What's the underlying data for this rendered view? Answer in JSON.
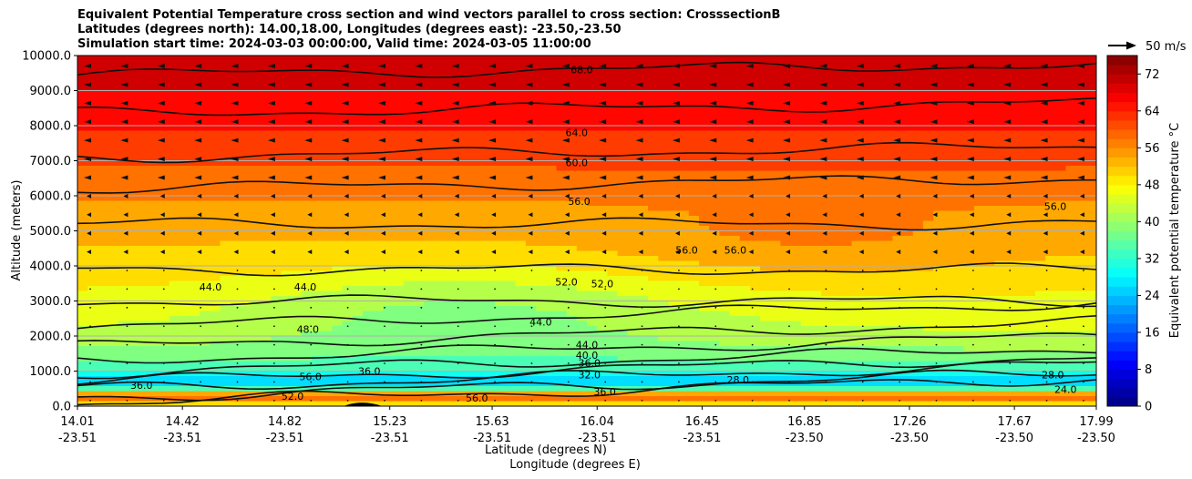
{
  "chart_data": {
    "type": "contour",
    "title_lines": [
      "Equivalent Potential Temperature cross section and wind vectors parallel to cross section: CrosssectionB",
      "Latitudes (degrees north): 14.00,18.00, Longitudes (degrees east): -23.50,-23.50",
      "Simulation start time: 2024-03-03 00:00:00, Valid time: 2024-03-05 11:00:00"
    ],
    "ylabel": "Altitude (meters)",
    "xlabel_lat": "Latitude (degrees N)",
    "xlabel_lon": "Longitude (degrees E)",
    "ylim": [
      0,
      10000
    ],
    "yticks": [
      "0.0",
      "1000.0",
      "2000.0",
      "3000.0",
      "4000.0",
      "5000.0",
      "6000.0",
      "7000.0",
      "8000.0",
      "9000.0",
      "10000.0"
    ],
    "xlim": [
      14.01,
      17.99
    ],
    "xticks": [
      {
        "lat": "14.01",
        "lon": "-23.51",
        "x": 14.01
      },
      {
        "lat": "14.42",
        "lon": "-23.51",
        "x": 14.42
      },
      {
        "lat": "14.82",
        "lon": "-23.51",
        "x": 14.82
      },
      {
        "lat": "15.23",
        "lon": "-23.51",
        "x": 15.23
      },
      {
        "lat": "15.63",
        "lon": "-23.51",
        "x": 15.63
      },
      {
        "lat": "16.04",
        "lon": "-23.51",
        "x": 16.04
      },
      {
        "lat": "16.45",
        "lon": "-23.51",
        "x": 16.45
      },
      {
        "lat": "16.85",
        "lon": "-23.50",
        "x": 16.85
      },
      {
        "lat": "17.26",
        "lon": "-23.50",
        "x": 17.26
      },
      {
        "lat": "17.67",
        "lon": "-23.50",
        "x": 17.67
      },
      {
        "lat": "17.99",
        "lon": "-23.50",
        "x": 17.99
      }
    ],
    "colorbar": {
      "label": "Equivalent potential temperature $^\\circ$C",
      "range": [
        0,
        76
      ],
      "ticks": [
        "0",
        "8",
        "16",
        "24",
        "32",
        "40",
        "48",
        "56",
        "64",
        "72"
      ],
      "colors": [
        "#00007f",
        "#0000c4",
        "#0000ff",
        "#0040ff",
        "#0080ff",
        "#00c0ff",
        "#00ffff",
        "#40ffbf",
        "#80ff80",
        "#bfff40",
        "#ffff00",
        "#ffc000",
        "#ff8000",
        "#ff4000",
        "#ff0000",
        "#c40000",
        "#7f0000"
      ]
    },
    "wind_key": "50 m/s",
    "contour_labels": [
      {
        "text": "68.0",
        "x": 15.98,
        "y": 9600
      },
      {
        "text": "64.0",
        "x": 15.96,
        "y": 7800
      },
      {
        "text": "60.0",
        "x": 15.96,
        "y": 6950
      },
      {
        "text": "56.0",
        "x": 15.97,
        "y": 5850
      },
      {
        "text": "56.0",
        "x": 16.39,
        "y": 4450
      },
      {
        "text": "56.0",
        "x": 16.58,
        "y": 4450
      },
      {
        "text": "56.0",
        "x": 17.83,
        "y": 5700
      },
      {
        "text": "52.0",
        "x": 15.92,
        "y": 3550
      },
      {
        "text": "52.0",
        "x": 16.06,
        "y": 3500
      },
      {
        "text": "44.0",
        "x": 14.53,
        "y": 3400
      },
      {
        "text": "44.0",
        "x": 14.9,
        "y": 3400
      },
      {
        "text": "48.0",
        "x": 14.91,
        "y": 2200
      },
      {
        "text": "44.0",
        "x": 15.82,
        "y": 2400
      },
      {
        "text": "44.0",
        "x": 16.0,
        "y": 1750
      },
      {
        "text": "40.0",
        "x": 16.0,
        "y": 1450
      },
      {
        "text": "36.0",
        "x": 16.01,
        "y": 1230
      },
      {
        "text": "36.0",
        "x": 15.15,
        "y": 1000
      },
      {
        "text": "36.0",
        "x": 14.26,
        "y": 600
      },
      {
        "text": "32.0",
        "x": 16.01,
        "y": 900
      },
      {
        "text": "56.0",
        "x": 14.92,
        "y": 850
      },
      {
        "text": "52.0",
        "x": 14.85,
        "y": 280
      },
      {
        "text": "56.0",
        "x": 15.57,
        "y": 230
      },
      {
        "text": "28.0",
        "x": 16.59,
        "y": 750
      },
      {
        "text": "28.0",
        "x": 17.82,
        "y": 900
      },
      {
        "text": "24.0",
        "x": 17.87,
        "y": 480
      },
      {
        "text": "36.0",
        "x": 16.07,
        "y": 420
      }
    ]
  }
}
